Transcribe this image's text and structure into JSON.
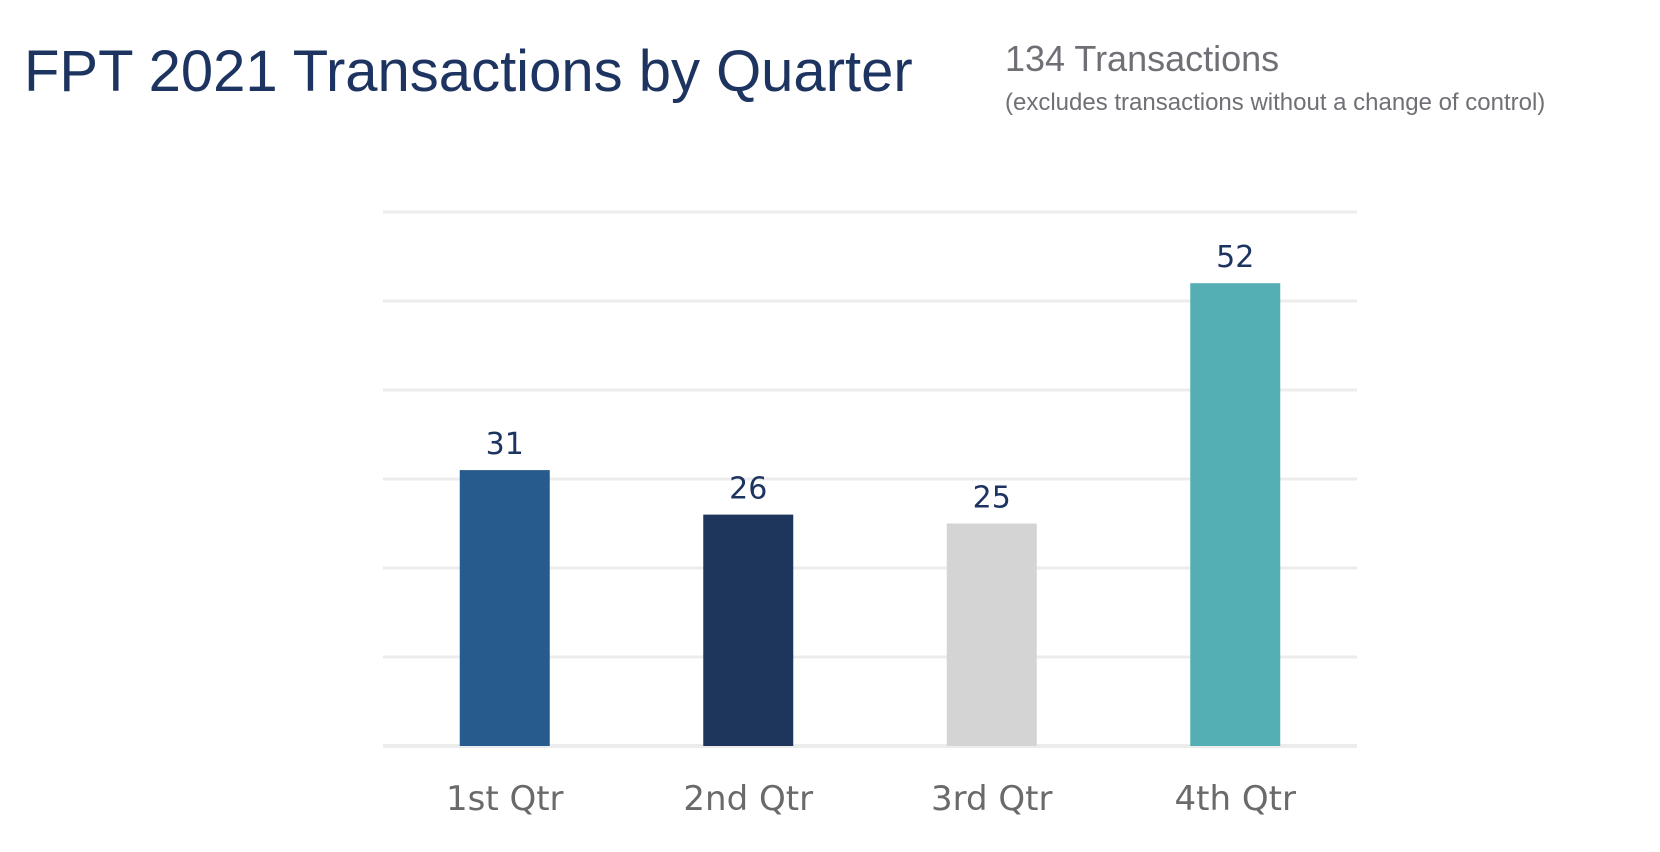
{
  "header": {
    "title": "FPT 2021 Transactions by Quarter",
    "summary": "134 Transactions",
    "note": "(excludes transactions without a change of control)"
  },
  "chart_data": {
    "type": "bar",
    "title": "",
    "xlabel": "",
    "ylabel": "",
    "categories": [
      "1st Qtr",
      "2nd Qtr",
      "3rd Qtr",
      "4th Qtr"
    ],
    "values": [
      31,
      26,
      25,
      52
    ],
    "value_labels": [
      "31",
      "26",
      "25",
      "52"
    ],
    "bar_colors": [
      "#275b8e",
      "#1f365c",
      "#d4d4d4",
      "#54afb4"
    ],
    "ylim": [
      0,
      60
    ],
    "gridlines": true,
    "grid_step": 10,
    "legend": "none"
  },
  "colors": {
    "title": "#1d3461",
    "subtitle": "#6f6f75",
    "gridline": "#ececec",
    "value_label": "#1d3461",
    "tick_label": "#6a6a6a"
  }
}
